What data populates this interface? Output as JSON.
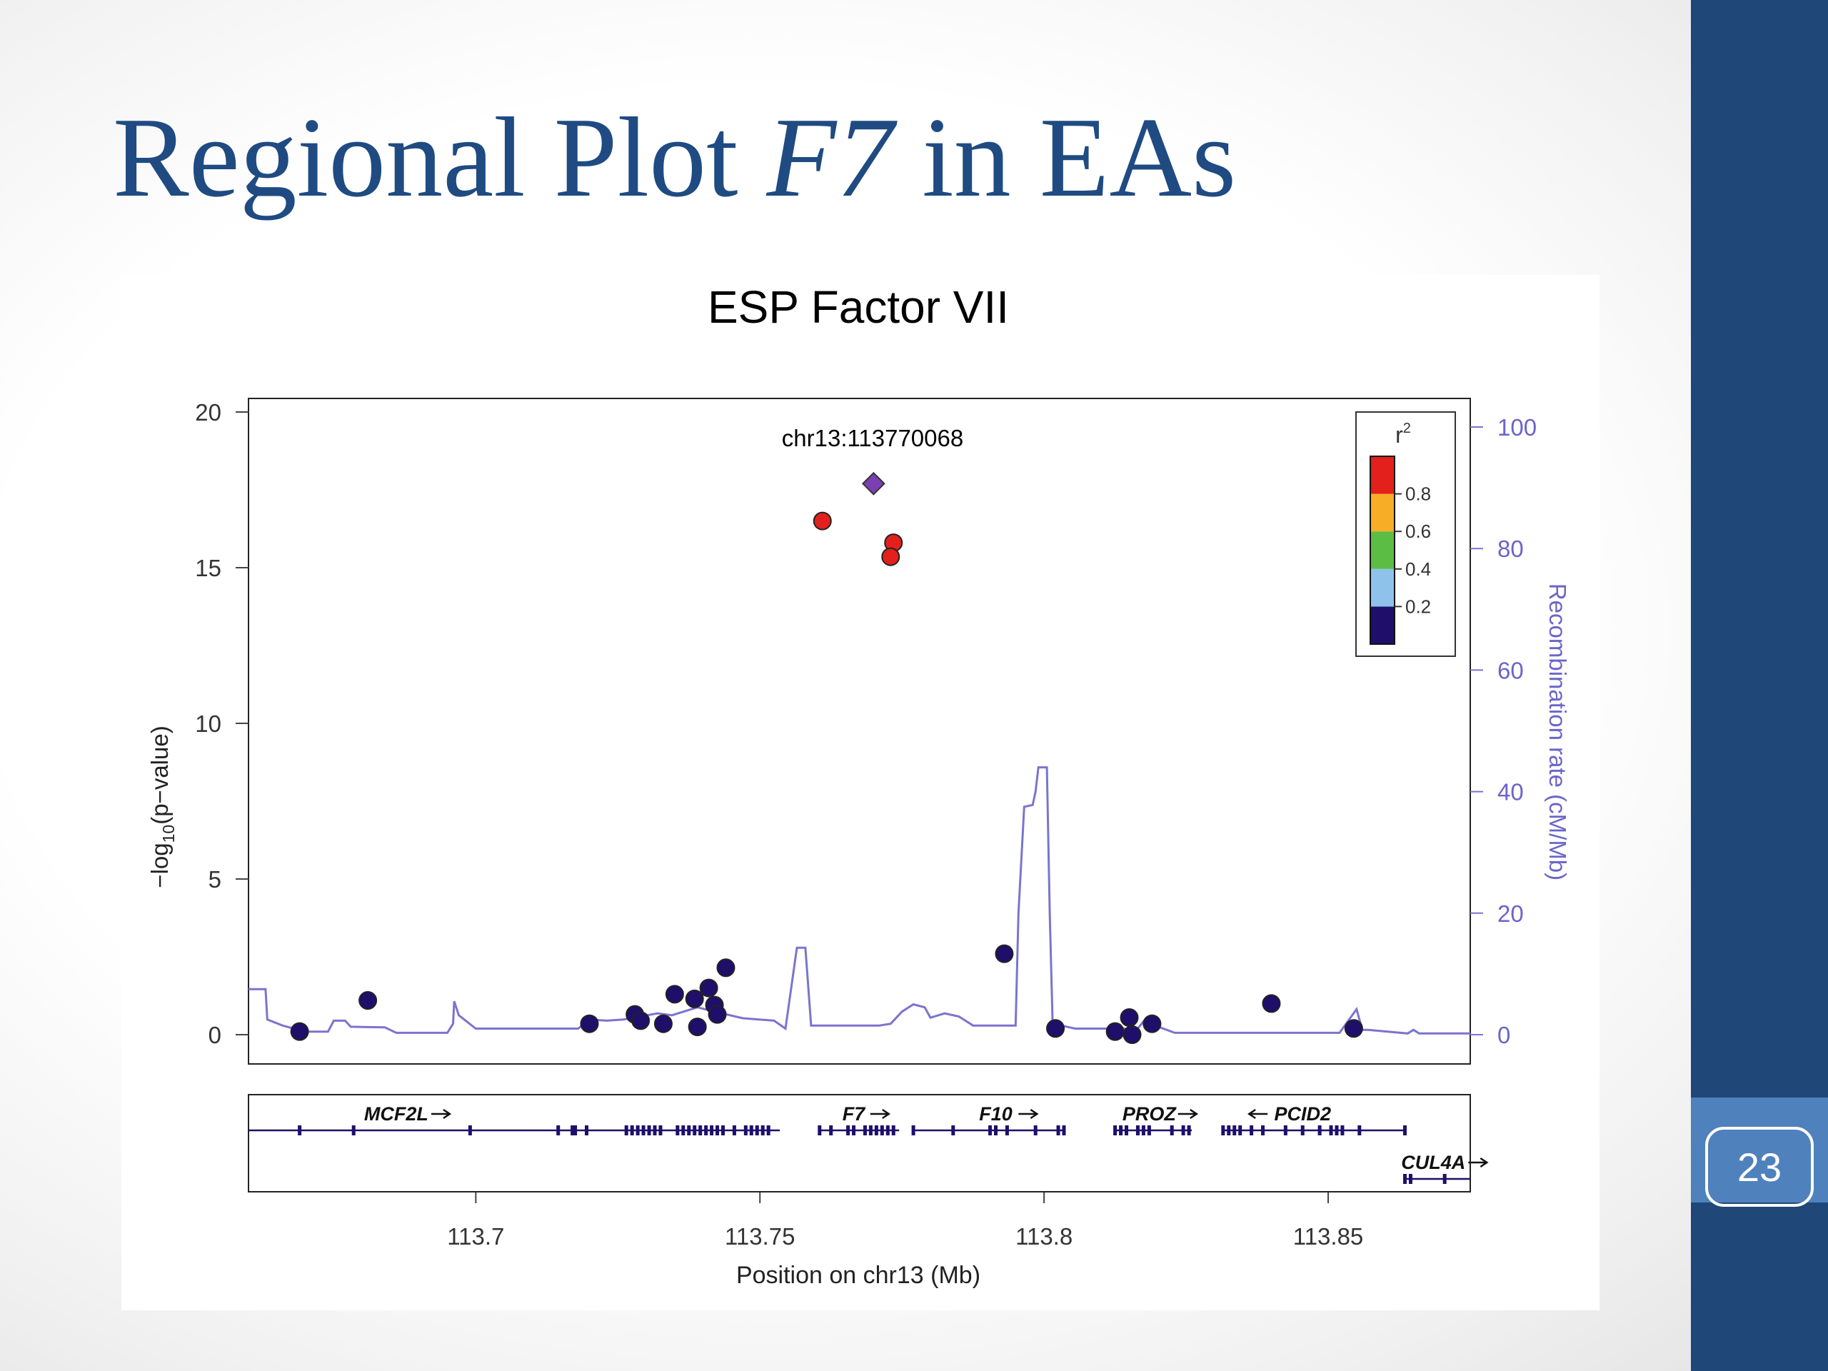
{
  "slide": {
    "title_plain": "Regional Plot ",
    "title_italic": "F7",
    "title_tail": " in EAs",
    "page_number": "23",
    "colors": {
      "title": "#1f4b82",
      "sidebar": "#1f4778",
      "page_box": "#4f81bd"
    }
  },
  "chart_data": {
    "type": "scatter",
    "title": "ESP Factor VII",
    "xlabel": "Position on chr13 (Mb)",
    "ylabel": "−log10(p−value)",
    "ylabel_main": "−log",
    "ylabel_sub": "10",
    "ylabel_tail": "(p−value)",
    "y2label": "Recombination rate (cM/Mb)",
    "xlim": [
      113.66,
      113.875
    ],
    "ylim": [
      0,
      20
    ],
    "y2lim": [
      0,
      100
    ],
    "x_ticks": [
      "113.7",
      "113.75",
      "113.8",
      "113.85"
    ],
    "y_ticks": [
      "0",
      "5",
      "10",
      "15",
      "20"
    ],
    "y2_ticks": [
      "0",
      "20",
      "40",
      "60",
      "80",
      "100"
    ],
    "annotation": "chr13:113770068",
    "legend": {
      "title": "r",
      "title_sup": "2",
      "position": "top-right",
      "labels": [
        "0.2",
        "0.4",
        "0.6",
        "0.8"
      ],
      "colors": [
        "#1f0f6b",
        "#8ec2ea",
        "#5cbd45",
        "#f7ad25",
        "#e3201c"
      ]
    },
    "colors": {
      "recombination": "#7b74cf",
      "high_ld": "#e3201c",
      "low_ld": "#1f0f6b",
      "index_snp": "#7a3fb0"
    },
    "index_snp": {
      "x": 113.77,
      "y": 17.7
    },
    "points": [
      {
        "x": 113.761,
        "y": 16.5,
        "r2": "high"
      },
      {
        "x": 113.7735,
        "y": 15.8,
        "r2": "high"
      },
      {
        "x": 113.773,
        "y": 15.35,
        "r2": "high"
      },
      {
        "x": 113.669,
        "y": 0.1,
        "r2": "low"
      },
      {
        "x": 113.681,
        "y": 1.1,
        "r2": "low"
      },
      {
        "x": 113.72,
        "y": 0.35,
        "r2": "low"
      },
      {
        "x": 113.728,
        "y": 0.65,
        "r2": "low"
      },
      {
        "x": 113.729,
        "y": 0.45,
        "r2": "low"
      },
      {
        "x": 113.733,
        "y": 0.35,
        "r2": "low"
      },
      {
        "x": 113.735,
        "y": 1.3,
        "r2": "low"
      },
      {
        "x": 113.7385,
        "y": 1.15,
        "r2": "low"
      },
      {
        "x": 113.739,
        "y": 0.25,
        "r2": "low"
      },
      {
        "x": 113.741,
        "y": 1.5,
        "r2": "low"
      },
      {
        "x": 113.742,
        "y": 0.95,
        "r2": "low"
      },
      {
        "x": 113.7425,
        "y": 0.65,
        "r2": "low"
      },
      {
        "x": 113.744,
        "y": 2.15,
        "r2": "low"
      },
      {
        "x": 113.793,
        "y": 2.6,
        "r2": "low"
      },
      {
        "x": 113.802,
        "y": 0.2,
        "r2": "low"
      },
      {
        "x": 113.8125,
        "y": 0.1,
        "r2": "low"
      },
      {
        "x": 113.815,
        "y": 0.55,
        "r2": "low"
      },
      {
        "x": 113.8155,
        "y": 0.0,
        "r2": "low"
      },
      {
        "x": 113.819,
        "y": 0.35,
        "r2": "low"
      },
      {
        "x": 113.84,
        "y": 1.0,
        "r2": "low"
      },
      {
        "x": 113.8545,
        "y": 0.2,
        "r2": "low"
      }
    ],
    "recombination_rate": [
      [
        113.66,
        7.5
      ],
      [
        113.663,
        7.5
      ],
      [
        113.6633,
        2.5
      ],
      [
        113.666,
        1.5
      ],
      [
        113.67,
        0.5
      ],
      [
        113.674,
        0.5
      ],
      [
        113.675,
        2.3
      ],
      [
        113.677,
        2.3
      ],
      [
        113.678,
        1.3
      ],
      [
        113.684,
        1.2
      ],
      [
        113.686,
        0.3
      ],
      [
        113.695,
        0.3
      ],
      [
        113.696,
        1.8
      ],
      [
        113.6962,
        5.5
      ],
      [
        113.697,
        3.2
      ],
      [
        113.7,
        1.0
      ],
      [
        113.718,
        1.0
      ],
      [
        113.72,
        2.5
      ],
      [
        113.723,
        2.3
      ],
      [
        113.726,
        2.5
      ],
      [
        113.732,
        3.5
      ],
      [
        113.7345,
        3.2
      ],
      [
        113.739,
        4.5
      ],
      [
        113.742,
        3.8
      ],
      [
        113.747,
        2.7
      ],
      [
        113.7525,
        2.3
      ],
      [
        113.7545,
        1.0
      ],
      [
        113.7565,
        14.3
      ],
      [
        113.758,
        14.3
      ],
      [
        113.759,
        1.5
      ],
      [
        113.771,
        1.5
      ],
      [
        113.773,
        1.8
      ],
      [
        113.775,
        3.8
      ],
      [
        113.777,
        5.0
      ],
      [
        113.779,
        4.5
      ],
      [
        113.78,
        2.8
      ],
      [
        113.7825,
        3.5
      ],
      [
        113.785,
        3.0
      ],
      [
        113.7875,
        1.5
      ],
      [
        113.795,
        1.5
      ],
      [
        113.7955,
        20
      ],
      [
        113.7965,
        37.5
      ],
      [
        113.798,
        37.8
      ],
      [
        113.7985,
        40
      ],
      [
        113.799,
        44
      ],
      [
        113.8005,
        44
      ],
      [
        113.801,
        20
      ],
      [
        113.8015,
        2
      ],
      [
        113.803,
        1.5
      ],
      [
        113.8055,
        1.0
      ],
      [
        113.8165,
        1.0
      ],
      [
        113.8175,
        2.2
      ],
      [
        113.823,
        0.3
      ],
      [
        113.852,
        0.3
      ],
      [
        113.855,
        4.2
      ],
      [
        113.856,
        0.8
      ],
      [
        113.857,
        0.8
      ],
      [
        113.864,
        0.2
      ],
      [
        113.865,
        0.8
      ],
      [
        113.866,
        0.2
      ],
      [
        113.875,
        0.2
      ]
    ]
  },
  "genes": [
    {
      "name": "MCF2L",
      "direction": "right",
      "start": 113.66,
      "end": 113.7535,
      "row": 1,
      "label_x": 113.686,
      "exons": [
        113.669,
        113.6785,
        113.699,
        113.7145,
        113.717,
        113.7175,
        113.7195,
        113.7265,
        113.7275,
        113.7285,
        113.7295,
        113.7305,
        113.7315,
        113.7325,
        113.7355,
        113.7365,
        113.7375,
        113.7385,
        113.7395,
        113.7405,
        113.7415,
        113.7425,
        113.7435,
        113.7455,
        113.7475,
        113.7485,
        113.7495,
        113.7505,
        113.7515
      ]
    },
    {
      "name": "F7",
      "direction": "right",
      "start": 113.7605,
      "end": 113.7745,
      "row": 1,
      "label_x": 113.7665,
      "exons": [
        113.7605,
        113.7625,
        113.7655,
        113.7665,
        113.7685,
        113.7695,
        113.7705,
        113.7715,
        113.7725,
        113.7735
      ]
    },
    {
      "name": "F10",
      "direction": "right",
      "start": 113.777,
      "end": 113.8035,
      "row": 1,
      "label_x": 113.7915,
      "exons": [
        113.777,
        113.784,
        113.7905,
        113.7915,
        113.7935,
        113.7985,
        113.8025,
        113.8035
      ]
    },
    {
      "name": "PROZ",
      "direction": "right",
      "start": 113.8125,
      "end": 113.826,
      "row": 1,
      "label_x": 113.8185,
      "exons": [
        113.8125,
        113.8135,
        113.8145,
        113.8165,
        113.8175,
        113.8185,
        113.8225,
        113.8245,
        113.8255
      ]
    },
    {
      "name": "PCID2",
      "direction": "left",
      "start": 113.8315,
      "end": 113.8635,
      "row": 1,
      "label_x": 113.8455,
      "exons": [
        113.8315,
        113.8325,
        113.8335,
        113.8345,
        113.8365,
        113.8385,
        113.8425,
        113.8455,
        113.8485,
        113.8505,
        113.8515,
        113.8525,
        113.8555,
        113.8635
      ]
    },
    {
      "name": "CUL4A",
      "direction": "right",
      "start": 113.8635,
      "end": 113.875,
      "row": 2,
      "label_x": 113.8685,
      "exons": [
        113.8635,
        113.8645,
        113.8705
      ]
    }
  ]
}
